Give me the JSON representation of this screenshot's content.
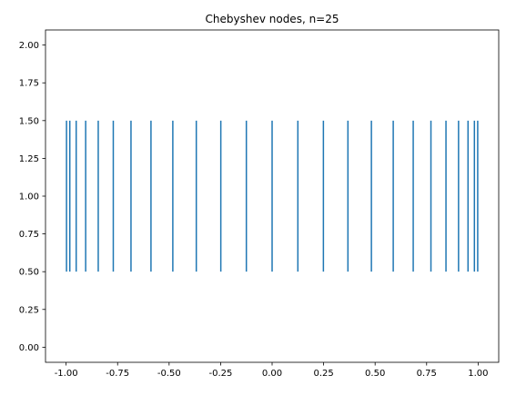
{
  "chart_data": {
    "type": "eventplot",
    "title": "Chebyshev nodes, n=25",
    "xlabel": "",
    "ylabel": "",
    "xlim": [
      -1.1,
      1.1
    ],
    "ylim": [
      -0.1,
      2.1
    ],
    "x_ticks": [
      -1.0,
      -0.75,
      -0.5,
      -0.25,
      0.0,
      0.25,
      0.5,
      0.75,
      1.0
    ],
    "x_tick_labels": [
      "-1.00",
      "-0.75",
      "-0.50",
      "-0.25",
      "0.00",
      "0.25",
      "0.50",
      "0.75",
      "1.00"
    ],
    "y_ticks": [
      0.0,
      0.25,
      0.5,
      0.75,
      1.0,
      1.25,
      1.5,
      1.75,
      2.0
    ],
    "y_tick_labels": [
      "0.00",
      "0.25",
      "0.50",
      "0.75",
      "1.00",
      "1.25",
      "1.50",
      "1.75",
      "2.00"
    ],
    "line_y_range": [
      0.5,
      1.5
    ],
    "x": [
      -0.998,
      -0.982,
      -0.951,
      -0.905,
      -0.844,
      -0.771,
      -0.685,
      -0.588,
      -0.482,
      -0.368,
      -0.249,
      -0.125,
      0.0,
      0.125,
      0.249,
      0.368,
      0.482,
      0.588,
      0.685,
      0.771,
      0.844,
      0.905,
      0.951,
      0.982,
      0.998
    ],
    "grid": false,
    "colors": {
      "series": "#1f77b4",
      "axes": "#000000",
      "background": "#ffffff"
    }
  }
}
